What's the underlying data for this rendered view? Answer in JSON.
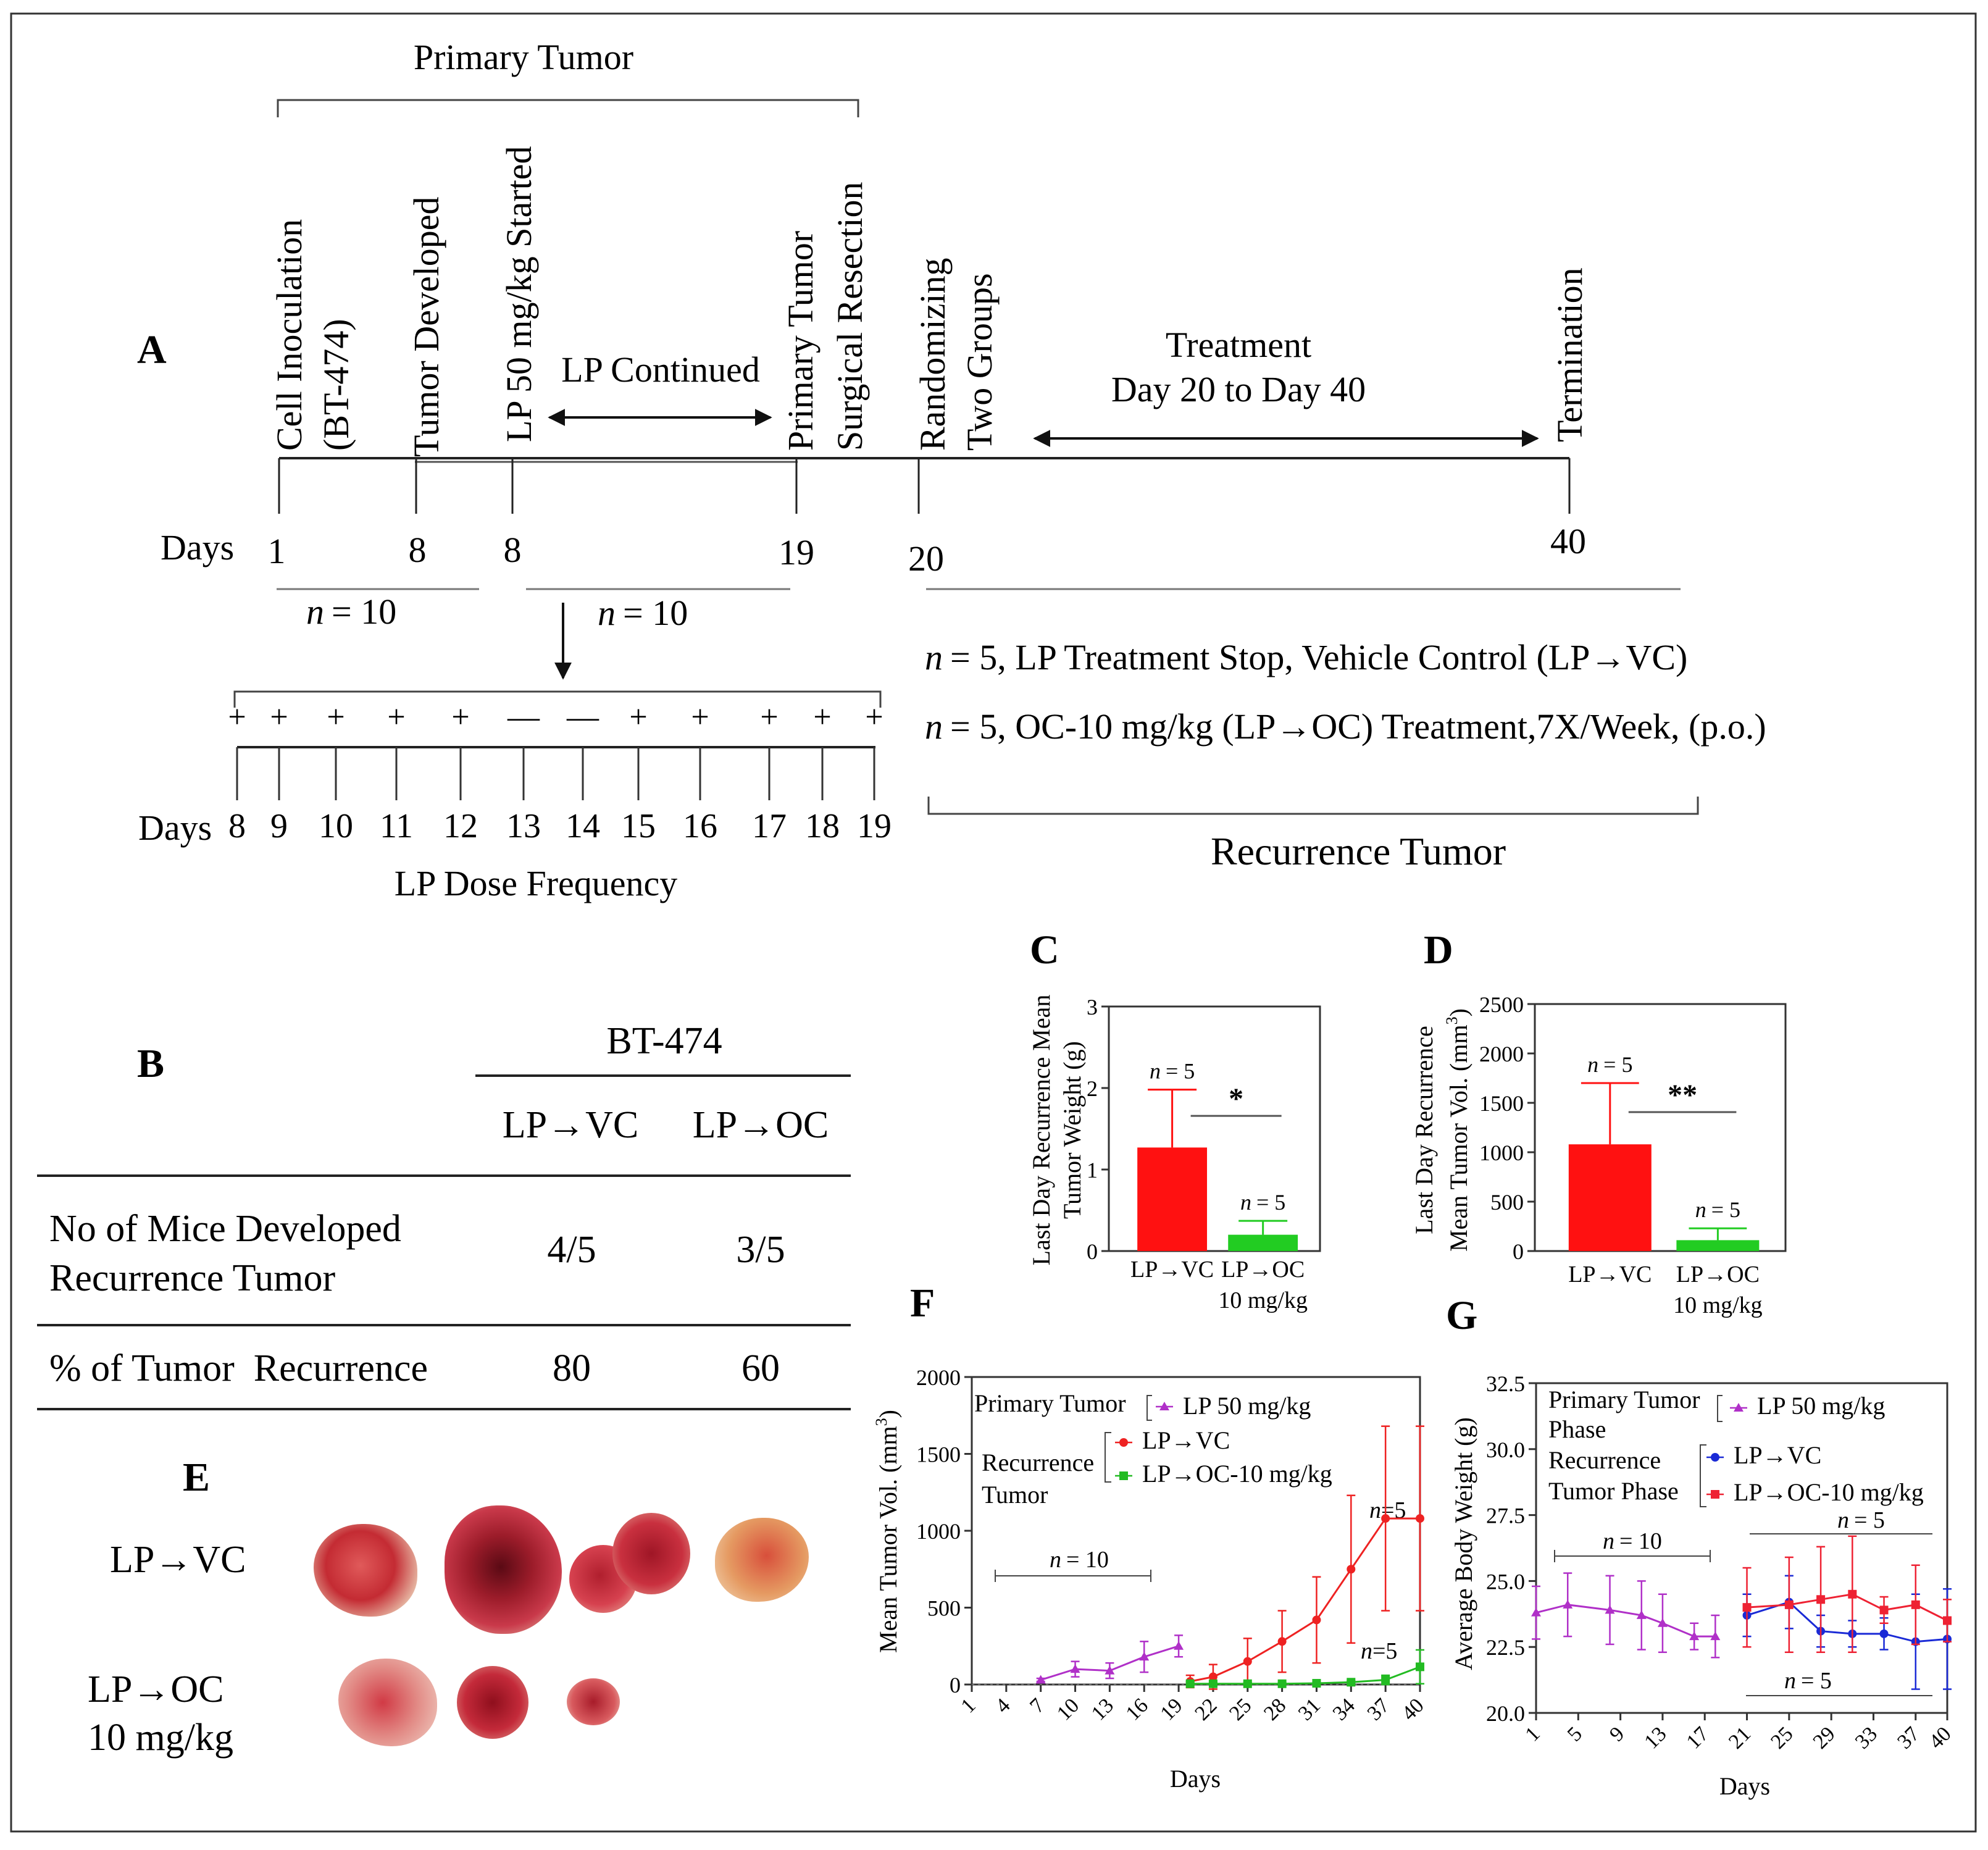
{
  "panelA": {
    "label": "A",
    "primary_tumor": "Primary Tumor",
    "events": [
      {
        "line1": "Cell Inoculation",
        "line2": "(BT-474)"
      },
      {
        "line1": "Tumor Developed",
        "line2": ""
      },
      {
        "line1": "LP 50 mg/kg Started",
        "line2": ""
      },
      {
        "line1": "Primary Tumor",
        "line2": "Surgical Resection"
      },
      {
        "line1": "Randomizing",
        "line2": "Two Groups"
      },
      {
        "line1": "Termination",
        "line2": ""
      }
    ],
    "lp_continued": "LP Continued",
    "treatment_line1": "Treatment",
    "treatment_line2": "Day 20 to Day 40",
    "days_label": "Days",
    "day_ticks": [
      "1",
      "8",
      "8",
      "19",
      "20",
      "40"
    ],
    "n_group1": "= 10",
    "n_group2": "= 10",
    "n_symbol": "n",
    "dose_signs": [
      "+",
      "+",
      "+",
      "+",
      "+",
      "—",
      "—",
      "+",
      "+",
      "+",
      "+",
      "+"
    ],
    "dose_days": [
      "8",
      "9",
      "10",
      "11",
      "12",
      "13",
      "14",
      "15",
      "16",
      "17",
      "18",
      "19"
    ],
    "dose_days_label": "Days",
    "dose_frequency": "LP Dose Frequency",
    "group_vc": "= 5, LP Treatment Stop, Vehicle Control (LP→VC)",
    "group_oc": "= 5, OC-10 mg/kg (LP→OC) Treatment,7X/Week, (p.o.)",
    "recurrence_tumor": "Recurrence Tumor"
  },
  "panelB": {
    "label": "B",
    "cell_line": "BT-474",
    "col1": "LP→VC",
    "col2": "LP→OC",
    "row1_line1": "No of Mice Developed",
    "row1_line2": "Recurrence Tumor",
    "row1_vc": "4/5",
    "row1_oc": "3/5",
    "row2_label": "% of Tumor  Recurrence",
    "row2_vc": "80",
    "row2_oc": "60"
  },
  "panelE": {
    "label": "E",
    "row1": "LP→VC",
    "row2_line1": "LP→OC",
    "row2_line2": "10 mg/kg"
  },
  "panelC": {
    "label": "C",
    "ylabel_line1": "Last Day Recurrence Mean",
    "ylabel_line2": "Tumor Weight (g)",
    "bars": [
      {
        "category": "LP→VC",
        "category2": "",
        "value": 1.27,
        "error_upper": 1.98,
        "n": "= 5",
        "color": "#ff1111"
      },
      {
        "category": "LP→OC",
        "category2": "10 mg/kg",
        "value": 0.2,
        "error_upper": 0.37,
        "n": "= 5",
        "color": "#22cc22"
      }
    ],
    "y_ticks": [
      "0",
      "1",
      "2",
      "3"
    ],
    "significance": "*"
  },
  "panelD": {
    "label": "D",
    "ylabel_line1": "Last Day Recurrence",
    "ylabel_line2": "Mean Tumor Vol. (mm",
    "ylabel_sup": "3",
    "bars": [
      {
        "category": "LP→VC",
        "category2": "",
        "value": 1080,
        "error_upper": 1700,
        "n": "= 5",
        "color": "#ff1111"
      },
      {
        "category": "LP→OC",
        "category2": "10 mg/kg",
        "value": 110,
        "error_upper": 230,
        "n": "= 5",
        "color": "#22cc22"
      }
    ],
    "y_ticks": [
      "0",
      "500",
      "1000",
      "1500",
      "2000",
      "2500"
    ],
    "significance": "**"
  },
  "panelF": {
    "label": "F",
    "ylabel": "Mean Tumor Vol. (mm",
    "ylabel_sup": "3",
    "xlabel": "Days",
    "y_ticks": [
      "0",
      "500",
      "1000",
      "1500",
      "2000"
    ],
    "x_ticks": [
      "1",
      "4",
      "7",
      "10",
      "13",
      "16",
      "19",
      "22",
      "25",
      "28",
      "31",
      "34",
      "37",
      "40"
    ],
    "legend_primary": "Primary Tumor",
    "legend_lp": "LP 50 mg/kg",
    "legend_recurrence1": "Recurrence",
    "legend_recurrence2": "Tumor",
    "legend_vc": "LP→VC",
    "legend_oc": "LP→OC-10 mg/kg",
    "n_primary": "= 10",
    "n_vc": "=5",
    "n_oc": "=5"
  },
  "panelG": {
    "label": "G",
    "ylabel": "Average Body Weight (g)",
    "xlabel": "Days",
    "y_ticks": [
      "20.0",
      "22.5",
      "25.0",
      "27.5",
      "30.0",
      "32.5"
    ],
    "x_ticks": [
      "1",
      "5",
      "9",
      "13",
      "17",
      "21",
      "25",
      "29",
      "33",
      "37",
      "40"
    ],
    "legend_primary1": "Primary Tumor",
    "legend_primary2": "Phase",
    "legend_lp": "LP 50 mg/kg",
    "legend_recurrence1": "Recurrence",
    "legend_recurrence2": "Tumor Phase",
    "legend_vc": "LP→VC",
    "legend_oc": "LP→OC-10 mg/kg",
    "n_primary": "= 10",
    "n_oc": "= 5",
    "n_vc": "= 5"
  },
  "chart_data": [
    {
      "type": "bar",
      "title": "",
      "categories": [
        "LP→VC",
        "LP→OC 10 mg/kg"
      ],
      "values": [
        1.27,
        0.2
      ],
      "error_upper": [
        1.98,
        0.37
      ],
      "ylabel": "Last Day Recurrence Mean Tumor Weight (g)",
      "xlabel": "",
      "ylim": [
        0,
        3
      ],
      "annotations": [
        "n = 5",
        "n = 5",
        "*"
      ]
    },
    {
      "type": "bar",
      "title": "",
      "categories": [
        "LP→VC",
        "LP→OC 10 mg/kg"
      ],
      "values": [
        1080,
        110
      ],
      "error_upper": [
        1700,
        230
      ],
      "ylabel": "Last Day Recurrence Mean Tumor Vol. (mm3)",
      "xlabel": "",
      "ylim": [
        0,
        2500
      ],
      "annotations": [
        "n = 5",
        "n = 5",
        "**"
      ]
    },
    {
      "type": "line",
      "title": "",
      "xlabel": "Days",
      "ylabel": "Mean Tumor Vol. (mm3)",
      "xlim": [
        1,
        40
      ],
      "ylim": [
        0,
        2000
      ],
      "series": [
        {
          "name": "LP 50 mg/kg",
          "color": "#b030c8",
          "x": [
            7,
            10,
            13,
            16,
            19
          ],
          "y": [
            30,
            100,
            90,
            180,
            250
          ],
          "err": [
            10,
            50,
            50,
            100,
            70
          ]
        },
        {
          "name": "LP→VC",
          "color": "#ee2222",
          "x": [
            20,
            22,
            25,
            28,
            31,
            34,
            37,
            40
          ],
          "y": [
            20,
            50,
            150,
            280,
            420,
            750,
            1080,
            1080
          ],
          "err": [
            40,
            80,
            150,
            200,
            280,
            480,
            600,
            600
          ]
        },
        {
          "name": "LP→OC-10 mg/kg",
          "color": "#22bb22",
          "x": [
            20,
            22,
            25,
            28,
            31,
            34,
            37,
            40
          ],
          "y": [
            5,
            5,
            5,
            5,
            8,
            15,
            30,
            115
          ],
          "err": [
            10,
            10,
            8,
            8,
            8,
            10,
            30,
            110
          ]
        }
      ]
    },
    {
      "type": "line",
      "title": "",
      "xlabel": "Days",
      "ylabel": "Average Body Weight (g)",
      "xlim": [
        1,
        40
      ],
      "ylim": [
        20,
        32.5
      ],
      "series": [
        {
          "name": "LP 50 mg/kg",
          "color": "#b030c8",
          "x": [
            1,
            4,
            8,
            11,
            13,
            16,
            18
          ],
          "y": [
            23.8,
            24.1,
            23.9,
            23.7,
            23.4,
            22.9,
            22.9
          ],
          "err": [
            1.0,
            1.2,
            1.3,
            1.3,
            1.1,
            0.5,
            0.8
          ]
        },
        {
          "name": "LP→VC",
          "color": "#1a2ad6",
          "x": [
            21,
            25,
            28,
            31,
            34,
            37,
            40
          ],
          "y": [
            23.7,
            24.2,
            23.1,
            23.0,
            23.0,
            22.7,
            22.8
          ],
          "err": [
            0.8,
            1.0,
            0.6,
            0.5,
            0.6,
            1.8,
            1.9
          ]
        },
        {
          "name": "LP→OC-10 mg/kg",
          "color": "#ee2233",
          "x": [
            21,
            25,
            28,
            31,
            34,
            37,
            40
          ],
          "y": [
            24.0,
            24.1,
            24.3,
            24.5,
            23.9,
            24.1,
            23.5
          ],
          "err": [
            1.5,
            1.8,
            2.0,
            2.2,
            0.5,
            1.5,
            0.8
          ]
        }
      ]
    }
  ]
}
